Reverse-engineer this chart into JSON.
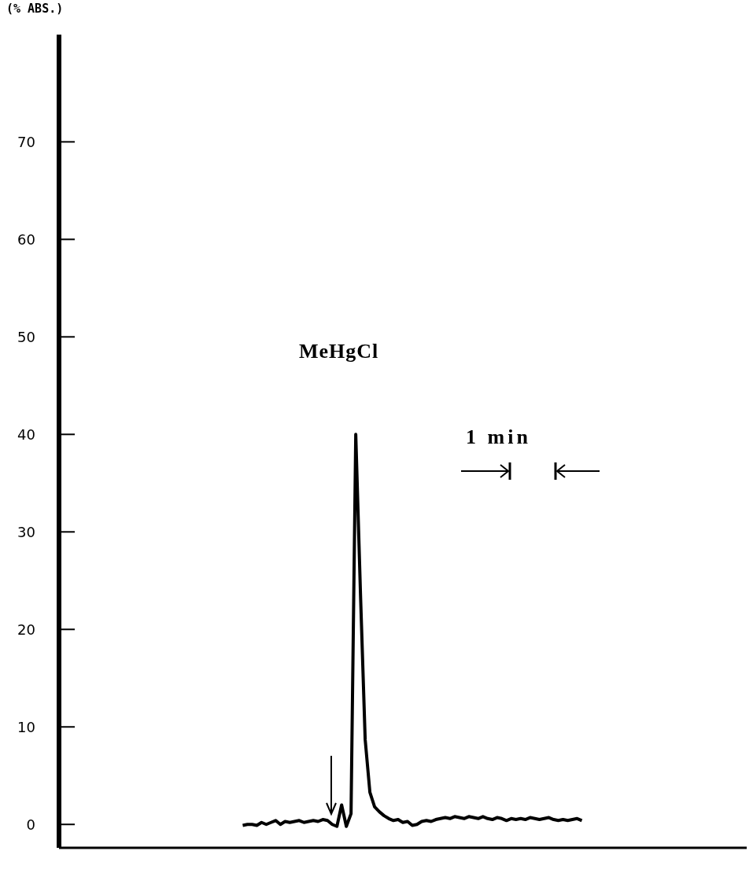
{
  "chart_data": {
    "type": "line",
    "ylabel": "(% ABS.)",
    "annotations": [
      "MeHgCl",
      "1 min"
    ],
    "categories": [
      null,
      null,
      null,
      null,
      null,
      null,
      null,
      null,
      null,
      null,
      null,
      null,
      null,
      null,
      null,
      null,
      null,
      null,
      null,
      null,
      null,
      null,
      null,
      null,
      null,
      null,
      null,
      null,
      null,
      null,
      null,
      null,
      null,
      null,
      null,
      null,
      null,
      null,
      null,
      null,
      null,
      null,
      null,
      null,
      null,
      null,
      null,
      null,
      null,
      null,
      null,
      null,
      null,
      null,
      null,
      null,
      null,
      null,
      null,
      null,
      null,
      null,
      null,
      null,
      null,
      null,
      null,
      null,
      null,
      null,
      null,
      null,
      null,
      null,
      null,
      null,
      null,
      null,
      null,
      null,
      null,
      null,
      null,
      null,
      null,
      null,
      null,
      null,
      null,
      null,
      null,
      null,
      null,
      null,
      null,
      null,
      null,
      null,
      null,
      null,
      null,
      null,
      null,
      null,
      null,
      null,
      null,
      null,
      null,
      null,
      null,
      null,
      null,
      null,
      null,
      null,
      null,
      null,
      null,
      null,
      null,
      null,
      null,
      null,
      null,
      null,
      null,
      null,
      null,
      null,
      null,
      null,
      null,
      null,
      null,
      null,
      null,
      null,
      null,
      null,
      null,
      null,
      null,
      null,
      null,
      null,
      null
    ],
    "series": [
      {
        "color": "#000000",
        "values": [
          null,
          null,
          null,
          null,
          null,
          null,
          null,
          null,
          null,
          null,
          null,
          null,
          null,
          null,
          null,
          null,
          null,
          null,
          null,
          null,
          null,
          null,
          null,
          null,
          null,
          null,
          null,
          null,
          null,
          null,
          null,
          null,
          null,
          null,
          null,
          null,
          null,
          null,
          null,
          -0.1,
          0.0,
          0.0,
          -0.1,
          0.2,
          0.0,
          0.2,
          0.4,
          0.0,
          0.3,
          0.2,
          0.3,
          0.4,
          0.2,
          0.3,
          0.4,
          0.3,
          0.5,
          0.4,
          0.0,
          -0.2,
          2.0,
          -0.2,
          1.1,
          40,
          23.7,
          8.7,
          3.3,
          1.8,
          1.3,
          0.9,
          0.6,
          0.4,
          0.5,
          0.2,
          0.3,
          -0.1,
          0.0,
          0.3,
          0.4,
          0.3,
          0.5,
          0.6,
          0.7,
          0.6,
          0.8,
          0.7,
          0.6,
          0.8,
          0.7,
          0.6,
          0.8,
          0.6,
          0.5,
          0.7,
          0.6,
          0.4,
          0.6,
          0.5,
          0.6,
          0.5,
          0.7,
          0.6,
          0.5,
          0.6,
          0.7,
          0.5,
          0.4,
          0.5,
          0.4,
          0.5,
          0.6,
          0.4,
          null,
          null,
          null,
          null,
          null,
          null,
          null,
          null,
          null,
          null,
          null,
          null,
          null,
          null,
          null,
          null,
          null,
          null,
          null,
          null,
          null,
          null,
          null,
          null,
          null,
          null,
          null,
          null,
          null,
          null,
          null,
          null,
          null,
          null,
          null
        ]
      }
    ],
    "ylim": [
      -2.4,
      81
    ],
    "yticks": [
      0,
      10,
      20,
      30,
      40,
      50,
      60,
      70
    ],
    "marker": "none",
    "line_style": "solid"
  }
}
